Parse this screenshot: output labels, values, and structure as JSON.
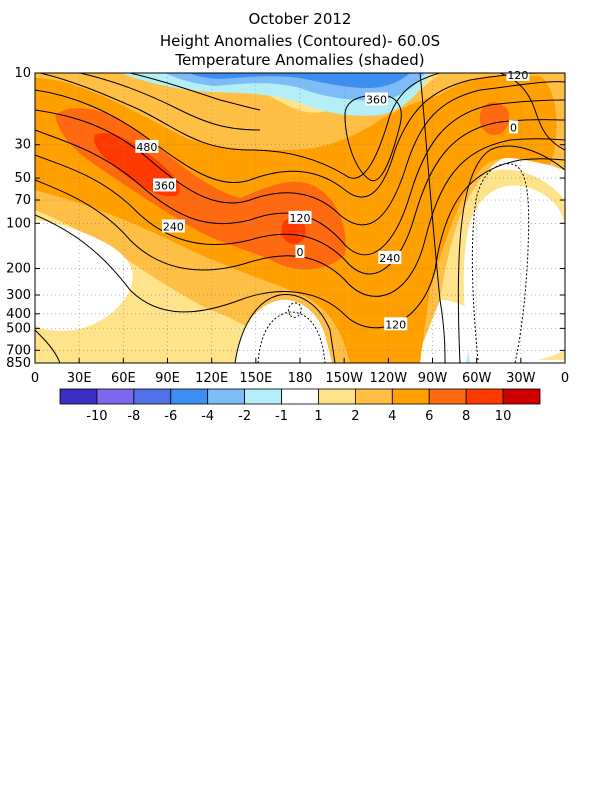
{
  "titles": {
    "line1": "October 2012",
    "line2": "Height Anomalies (Contoured)- 60.0S",
    "line3": "Temperature Anomalies (shaded)"
  },
  "chart_data": {
    "type": "heatmap",
    "title": "October 2012",
    "subtitle": "Height Anomalies (Contoured)- 60.0S / Temperature Anomalies (shaded)",
    "x_ticks": [
      "0",
      "30E",
      "60E",
      "90E",
      "120E",
      "150E",
      "180",
      "150W",
      "120W",
      "90W",
      "60W",
      "30W",
      "0"
    ],
    "x_values": [
      0,
      30,
      60,
      90,
      120,
      150,
      180,
      210,
      240,
      270,
      300,
      330,
      360
    ],
    "y_ticks": [
      "10",
      "30",
      "50",
      "70",
      "100",
      "200",
      "300",
      "400",
      "500",
      "700",
      "850"
    ],
    "y_values": [
      10,
      30,
      50,
      70,
      100,
      200,
      300,
      400,
      500,
      700,
      850
    ],
    "y_scale": "log",
    "xlim": [
      0,
      360
    ],
    "ylim": [
      850,
      10
    ],
    "grid": true,
    "colorbar": {
      "labels": [
        "-10",
        "-8",
        "-6",
        "-4",
        "-2",
        "-1",
        "1",
        "2",
        "4",
        "6",
        "8",
        "10"
      ],
      "bins": [
        {
          "color": "#3a2fc0"
        },
        {
          "color": "#7b68ee"
        },
        {
          "color": "#5070e8"
        },
        {
          "color": "#3c8ef0"
        },
        {
          "color": "#7ebcf8"
        },
        {
          "color": "#b4eef6"
        },
        {
          "color": "#ffffff"
        },
        {
          "color": "#ffe38a"
        },
        {
          "color": "#ffbe44"
        },
        {
          "color": "#ff9f00"
        },
        {
          "color": "#ff6a10"
        },
        {
          "color": "#ff3a00"
        },
        {
          "color": "#cc0000"
        }
      ]
    },
    "contour_labels": [
      {
        "text": "480",
        "lon": 76,
        "p": 31
      },
      {
        "text": "360",
        "lon": 88,
        "p": 56
      },
      {
        "text": "240",
        "lon": 94,
        "p": 105
      },
      {
        "text": "120",
        "lon": 180,
        "p": 92
      },
      {
        "text": "0",
        "lon": 180,
        "p": 155
      },
      {
        "text": "240",
        "lon": 241,
        "p": 170
      },
      {
        "text": "120",
        "lon": 245,
        "p": 470
      },
      {
        "text": "360",
        "lon": 232,
        "p": 15
      },
      {
        "text": "0",
        "lon": 325,
        "p": 23
      },
      {
        "text": "120",
        "lon": 328,
        "p": 10.3
      }
    ]
  }
}
